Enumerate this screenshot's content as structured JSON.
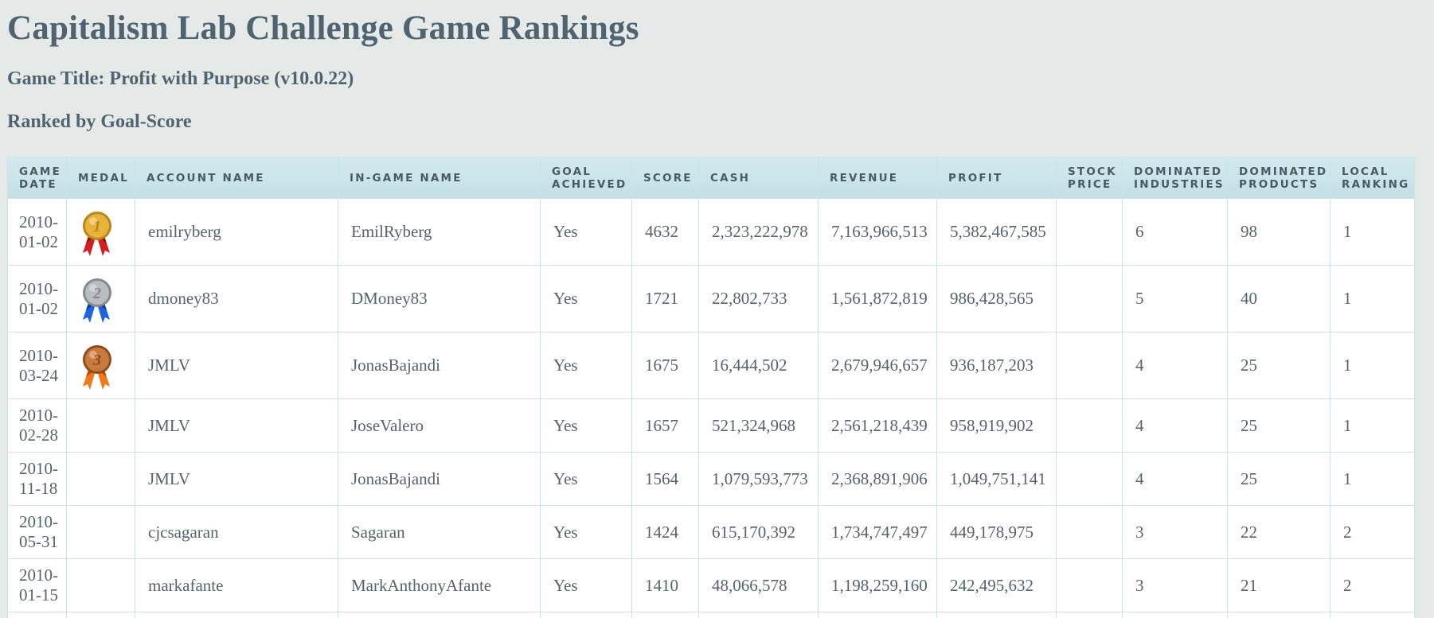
{
  "page": {
    "title": "Capitalism Lab Challenge Game Rankings",
    "game_title": "Game Title: Profit with Purpose (v10.0.22)",
    "ranked_by": "Ranked by Goal-Score"
  },
  "table": {
    "headers": {
      "game_date_1": "GAME",
      "game_date_2": "DATE",
      "medal": "MEDAL",
      "account_name": "ACCOUNT NAME",
      "ingame_name": "IN-GAME NAME",
      "goal_1": "GOAL",
      "goal_2": "ACHIEVED",
      "score": "SCORE",
      "cash": "CASH",
      "revenue": "REVENUE",
      "profit": "PROFIT",
      "stock_1": "STOCK",
      "stock_2": "PRICE",
      "dom_ind_1": "DOMINATED",
      "dom_ind_2": "INDUSTRIES",
      "dom_prod_1": "DOMINATED",
      "dom_prod_2": "PRODUCTS",
      "local_1": "LOCAL",
      "local_2": "RANKING"
    },
    "rows": [
      {
        "date_year": "2010-",
        "date_md": "01-02",
        "medal": "gold",
        "medal_number": "1",
        "account": "emilryberg",
        "ingame": "EmilRyberg",
        "goal": "Yes",
        "score": "4632",
        "cash": "2,323,222,978",
        "revenue": "7,163,966,513",
        "profit": "5,382,467,585",
        "stock": "",
        "dom_ind": "6",
        "dom_prod": "98",
        "local": "1"
      },
      {
        "date_year": "2010-",
        "date_md": "01-02",
        "medal": "silver",
        "medal_number": "2",
        "account": "dmoney83",
        "ingame": "DMoney83",
        "goal": "Yes",
        "score": "1721",
        "cash": "22,802,733",
        "revenue": "1,561,872,819",
        "profit": "986,428,565",
        "stock": "",
        "dom_ind": "5",
        "dom_prod": "40",
        "local": "1"
      },
      {
        "date_year": "2010-",
        "date_md": "03-24",
        "medal": "bronze",
        "medal_number": "3",
        "account": "JMLV",
        "ingame": "JonasBajandi",
        "goal": "Yes",
        "score": "1675",
        "cash": "16,444,502",
        "revenue": "2,679,946,657",
        "profit": "936,187,203",
        "stock": "",
        "dom_ind": "4",
        "dom_prod": "25",
        "local": "1"
      },
      {
        "date_year": "2010-",
        "date_md": "02-28",
        "medal": "",
        "medal_number": "",
        "account": "JMLV",
        "ingame": "JoseValero",
        "goal": "Yes",
        "score": "1657",
        "cash": "521,324,968",
        "revenue": "2,561,218,439",
        "profit": "958,919,902",
        "stock": "",
        "dom_ind": "4",
        "dom_prod": "25",
        "local": "1"
      },
      {
        "date_year": "2010-",
        "date_md": "11-18",
        "medal": "",
        "medal_number": "",
        "account": "JMLV",
        "ingame": "JonasBajandi",
        "goal": "Yes",
        "score": "1564",
        "cash": "1,079,593,773",
        "revenue": "2,368,891,906",
        "profit": "1,049,751,141",
        "stock": "",
        "dom_ind": "4",
        "dom_prod": "25",
        "local": "1"
      },
      {
        "date_year": "2010-",
        "date_md": "05-31",
        "medal": "",
        "medal_number": "",
        "account": "cjcsagaran",
        "ingame": "Sagaran",
        "goal": "Yes",
        "score": "1424",
        "cash": "615,170,392",
        "revenue": "1,734,747,497",
        "profit": "449,178,975",
        "stock": "",
        "dom_ind": "3",
        "dom_prod": "22",
        "local": "2"
      },
      {
        "date_year": "2010-",
        "date_md": "01-15",
        "medal": "",
        "medal_number": "",
        "account": "markafante",
        "ingame": "MarkAnthonyAfante",
        "goal": "Yes",
        "score": "1410",
        "cash": "48,066,578",
        "revenue": "1,198,259,160",
        "profit": "242,495,632",
        "stock": "",
        "dom_ind": "3",
        "dom_prod": "21",
        "local": "2"
      },
      {
        "date_year": "",
        "date_md": "",
        "medal": "",
        "medal_number": "",
        "account": "",
        "ingame": "",
        "goal": "",
        "score": "",
        "cash": "",
        "revenue": "",
        "profit": "",
        "stock": "",
        "dom_ind": "",
        "dom_prod": "",
        "local": ""
      }
    ]
  },
  "medal_colors": {
    "gold": {
      "disc": "#e7b43a",
      "rim": "#b8861c",
      "ribbon1": "#d11f1f",
      "ribbon2": "#8f1010"
    },
    "silver": {
      "disc": "#b9bcc0",
      "rim": "#858a8f",
      "ribbon1": "#1f63e0",
      "ribbon2": "#0f3a9c"
    },
    "bronze": {
      "disc": "#c97a3e",
      "rim": "#8e4e1f",
      "ribbon1": "#f07a1a",
      "ribbon2": "#b8500b"
    }
  }
}
